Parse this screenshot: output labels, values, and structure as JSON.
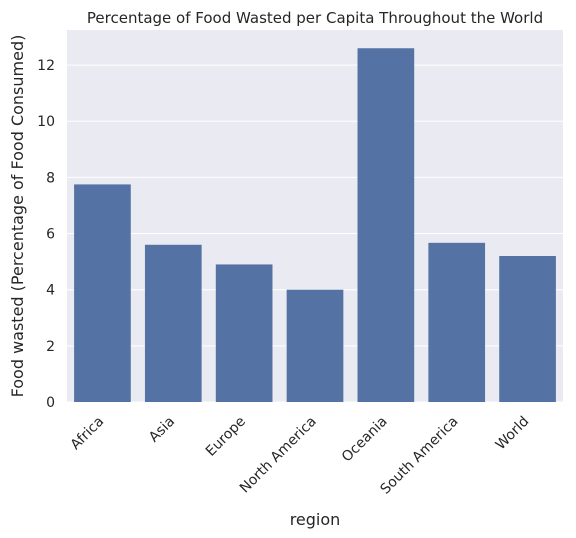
{
  "chart_data": {
    "type": "bar",
    "title": "Percentage of Food Wasted per Capita Throughout the World",
    "xlabel": "region",
    "ylabel": "Food wasted (Percentage of Food Consumed)",
    "categories": [
      "Africa",
      "Asia",
      "Europe",
      "North America",
      "Oceania",
      "South America",
      "World"
    ],
    "values": [
      7.75,
      5.6,
      4.9,
      4.0,
      12.6,
      5.67,
      5.2
    ],
    "ylim": [
      0,
      13.25
    ],
    "yticks": [
      0,
      2,
      4,
      6,
      8,
      10,
      12
    ],
    "grid": true,
    "colors": {
      "bar": "#5572a5",
      "plot_background": "#eaeaf2",
      "grid": "#ffffff"
    }
  }
}
